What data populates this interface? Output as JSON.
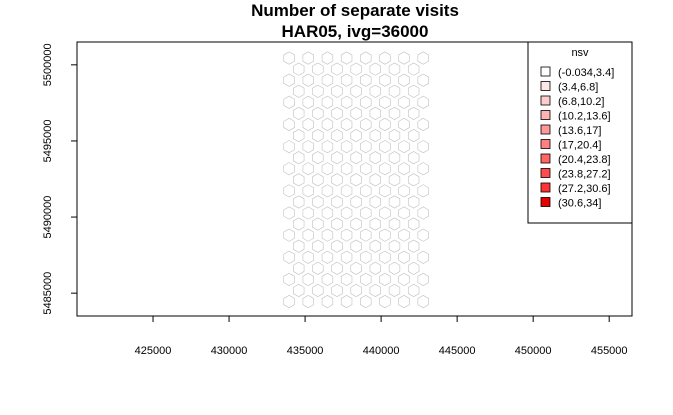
{
  "chart_data": {
    "type": "heatmap",
    "title_line1": "Number of separate visits",
    "title_line2": "HAR05, ivg=36000",
    "x_ticks": [
      425000,
      430000,
      435000,
      440000,
      445000,
      450000,
      455000
    ],
    "y_ticks": [
      5485000,
      5490000,
      5495000,
      5500000
    ],
    "xlim": [
      420000,
      456500
    ],
    "ylim": [
      5483500,
      5501500
    ],
    "grid": false,
    "hex_grid": {
      "x_start": 433950,
      "x_step": 1260,
      "y_start": 5484450,
      "y_step": 727,
      "cols": 8,
      "rows": 23
    },
    "legend": {
      "title": "nsv",
      "position": "top-right",
      "entries": [
        {
          "label": "(-0.034,3.4]",
          "color": "#ffffff"
        },
        {
          "label": "(3.4,6.8]",
          "color": "#ffe6e6"
        },
        {
          "label": "(6.8,10.2]",
          "color": "#ffcccc"
        },
        {
          "label": "(10.2,13.6]",
          "color": "#ffb3b3"
        },
        {
          "label": "(13.6,17]",
          "color": "#ff9999"
        },
        {
          "label": "(17,20.4]",
          "color": "#ff8080"
        },
        {
          "label": "(20.4,23.8]",
          "color": "#ff6666"
        },
        {
          "label": "(23.8,27.2]",
          "color": "#ff4d4d"
        },
        {
          "label": "(27.2,30.6]",
          "color": "#ff3333"
        },
        {
          "label": "(30.6,34]",
          "color": "#e60000"
        }
      ]
    },
    "cells": [
      {
        "x": 438990,
        "y": 5496990,
        "c": 1
      },
      {
        "x": 438360,
        "y": 5496262,
        "c": 2
      },
      {
        "x": 437730,
        "y": 5496262,
        "c": 1
      },
      {
        "x": 437730,
        "y": 5495535,
        "c": 1
      },
      {
        "x": 438990,
        "y": 5495535,
        "c": 1
      },
      {
        "x": 437730,
        "y": 5494808,
        "c": 2
      },
      {
        "x": 438360,
        "y": 5494808,
        "c": 6
      },
      {
        "x": 438990,
        "y": 5494808,
        "c": 2
      },
      {
        "x": 439620,
        "y": 5494808,
        "c": 1
      },
      {
        "x": 435210,
        "y": 5494081,
        "c": 1
      },
      {
        "x": 436470,
        "y": 5494081,
        "c": 3
      },
      {
        "x": 437100,
        "y": 5494081,
        "c": 4
      },
      {
        "x": 437730,
        "y": 5494081,
        "c": 2
      },
      {
        "x": 438360,
        "y": 5494081,
        "c": 3
      },
      {
        "x": 438990,
        "y": 5494081,
        "c": 1
      },
      {
        "x": 439620,
        "y": 5494081,
        "c": 2
      },
      {
        "x": 434580,
        "y": 5493354,
        "c": 1
      },
      {
        "x": 435840,
        "y": 5493354,
        "c": 3
      },
      {
        "x": 436470,
        "y": 5493354,
        "c": 2
      },
      {
        "x": 437100,
        "y": 5493354,
        "c": 4
      },
      {
        "x": 437730,
        "y": 5493354,
        "c": 3
      },
      {
        "x": 438360,
        "y": 5493354,
        "c": 4
      },
      {
        "x": 438990,
        "y": 5493354,
        "c": 5
      },
      {
        "x": 439620,
        "y": 5493354,
        "c": 3
      },
      {
        "x": 440250,
        "y": 5493354,
        "c": 2
      },
      {
        "x": 440880,
        "y": 5493354,
        "c": 1
      },
      {
        "x": 435840,
        "y": 5492627,
        "c": 2
      },
      {
        "x": 436470,
        "y": 5492627,
        "c": 3
      },
      {
        "x": 437100,
        "y": 5492627,
        "c": 3
      },
      {
        "x": 437730,
        "y": 5492627,
        "c": 5
      },
      {
        "x": 438360,
        "y": 5492627,
        "c": 7
      },
      {
        "x": 438990,
        "y": 5492627,
        "c": 4
      },
      {
        "x": 439620,
        "y": 5492627,
        "c": 3
      },
      {
        "x": 440250,
        "y": 5492627,
        "c": 5
      },
      {
        "x": 440880,
        "y": 5492627,
        "c": 2
      },
      {
        "x": 441510,
        "y": 5492627,
        "c": 1
      },
      {
        "x": 436470,
        "y": 5491900,
        "c": 2
      },
      {
        "x": 437100,
        "y": 5491900,
        "c": 4
      },
      {
        "x": 437730,
        "y": 5491900,
        "c": 8
      },
      {
        "x": 438360,
        "y": 5491900,
        "c": 5
      },
      {
        "x": 438990,
        "y": 5491900,
        "c": 9
      },
      {
        "x": 439620,
        "y": 5491900,
        "c": 8
      },
      {
        "x": 440250,
        "y": 5491900,
        "c": 4
      },
      {
        "x": 440880,
        "y": 5491900,
        "c": 5
      },
      {
        "x": 441510,
        "y": 5491900,
        "c": 3
      },
      {
        "x": 436470,
        "y": 5491173,
        "c": 2
      },
      {
        "x": 437100,
        "y": 5491173,
        "c": 3
      },
      {
        "x": 437730,
        "y": 5491173,
        "c": 4
      },
      {
        "x": 438360,
        "y": 5491173,
        "c": 3
      },
      {
        "x": 438990,
        "y": 5491173,
        "c": 6
      },
      {
        "x": 439620,
        "y": 5491173,
        "c": 5
      },
      {
        "x": 440250,
        "y": 5491173,
        "c": 6
      },
      {
        "x": 440880,
        "y": 5491173,
        "c": 4
      },
      {
        "x": 441510,
        "y": 5491173,
        "c": 3
      },
      {
        "x": 442140,
        "y": 5491173,
        "c": 1
      },
      {
        "x": 435840,
        "y": 5490446,
        "c": 1
      },
      {
        "x": 436470,
        "y": 5490446,
        "c": 2
      },
      {
        "x": 437100,
        "y": 5490446,
        "c": 3
      },
      {
        "x": 437730,
        "y": 5490446,
        "c": 2
      },
      {
        "x": 438360,
        "y": 5490446,
        "c": 4
      },
      {
        "x": 438990,
        "y": 5490446,
        "c": 3
      },
      {
        "x": 439620,
        "y": 5490446,
        "c": 4
      },
      {
        "x": 440250,
        "y": 5490446,
        "c": 6
      },
      {
        "x": 440880,
        "y": 5490446,
        "c": 5
      },
      {
        "x": 441510,
        "y": 5490446,
        "c": 3
      },
      {
        "x": 442140,
        "y": 5490446,
        "c": 2
      },
      {
        "x": 436470,
        "y": 5489719,
        "c": 1
      },
      {
        "x": 437100,
        "y": 5489719,
        "c": 2
      },
      {
        "x": 437730,
        "y": 5489719,
        "c": 6
      },
      {
        "x": 438360,
        "y": 5489719,
        "c": 5
      },
      {
        "x": 438990,
        "y": 5489719,
        "c": 2
      },
      {
        "x": 439620,
        "y": 5489719,
        "c": 3
      },
      {
        "x": 440250,
        "y": 5489719,
        "c": 2
      },
      {
        "x": 440880,
        "y": 5489719,
        "c": 4
      },
      {
        "x": 441510,
        "y": 5489719,
        "c": 3
      },
      {
        "x": 442140,
        "y": 5489719,
        "c": 2
      },
      {
        "x": 437730,
        "y": 5488992,
        "c": 1
      },
      {
        "x": 438360,
        "y": 5488992,
        "c": 2
      },
      {
        "x": 438990,
        "y": 5488992,
        "c": 1
      },
      {
        "x": 439620,
        "y": 5488992,
        "c": 2
      },
      {
        "x": 440250,
        "y": 5488992,
        "c": 1
      },
      {
        "x": 440880,
        "y": 5488992,
        "c": 3
      },
      {
        "x": 441510,
        "y": 5488992,
        "c": 2
      },
      {
        "x": 442140,
        "y": 5488992,
        "c": 5
      },
      {
        "x": 440250,
        "y": 5488265,
        "c": 1
      },
      {
        "x": 440880,
        "y": 5488265,
        "c": 2
      },
      {
        "x": 441510,
        "y": 5488265,
        "c": 3
      },
      {
        "x": 442140,
        "y": 5488265,
        "c": 2
      },
      {
        "x": 441510,
        "y": 5487538,
        "c": 1
      },
      {
        "x": 442140,
        "y": 5487538,
        "c": 1
      },
      {
        "x": 438360,
        "y": 5486811,
        "c": 1
      },
      {
        "x": 442140,
        "y": 5486811,
        "c": 2
      }
    ]
  }
}
